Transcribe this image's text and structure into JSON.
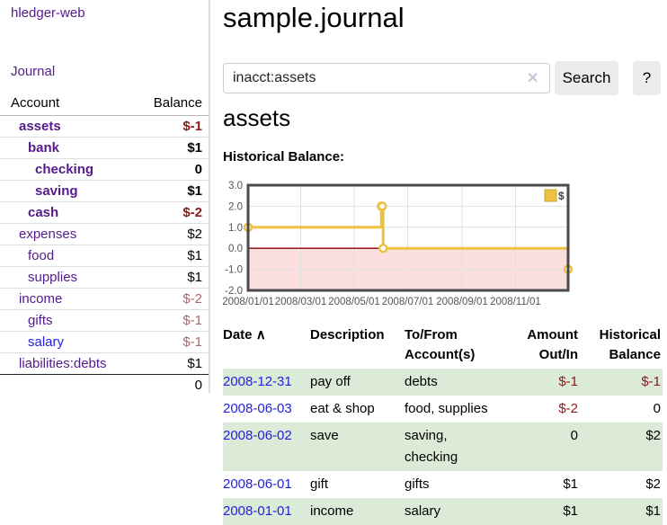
{
  "app": {
    "title": "hledger-web",
    "nav_journal": "Journal"
  },
  "sidebar": {
    "header": {
      "account": "Account",
      "balance": "Balance"
    },
    "rows": [
      {
        "name": "assets",
        "balance": "$-1"
      },
      {
        "name": "bank",
        "balance": "$1"
      },
      {
        "name": "checking",
        "balance": "0"
      },
      {
        "name": "saving",
        "balance": "$1"
      },
      {
        "name": "cash",
        "balance": "$-2"
      },
      {
        "name": "expenses",
        "balance": "$2"
      },
      {
        "name": "food",
        "balance": "$1"
      },
      {
        "name": "supplies",
        "balance": "$1"
      },
      {
        "name": "income",
        "balance": "$-2"
      },
      {
        "name": "gifts",
        "balance": "$-1"
      },
      {
        "name": "salary",
        "balance": "$-1"
      },
      {
        "name": "liabilities:debts",
        "balance": "$1"
      }
    ],
    "total": "0"
  },
  "main": {
    "title": "sample.journal",
    "search": {
      "value": "inacct:assets",
      "clear_icon": "✕",
      "button": "Search",
      "help": "?"
    },
    "account_heading": "assets",
    "chart_label": "Historical Balance:"
  },
  "chart_data": {
    "type": "line",
    "step": true,
    "title": "Historical Balance",
    "series": [
      {
        "name": "$",
        "color": "#edc240",
        "points": [
          [
            "2008-01-01",
            1
          ],
          [
            "2008-06-01",
            2
          ],
          [
            "2008-06-02",
            2
          ],
          [
            "2008-06-03",
            0
          ],
          [
            "2008-12-31",
            -1
          ]
        ]
      }
    ],
    "xrange": [
      "2008-01-01",
      "2008-12-31"
    ],
    "ylim": [
      -2,
      3
    ],
    "yticks": [
      {
        "v": 3,
        "label": "3.0"
      },
      {
        "v": 2,
        "label": "2.0"
      },
      {
        "v": 1,
        "label": "1.0"
      },
      {
        "v": 0,
        "label": "0.0"
      },
      {
        "v": -1,
        "label": "-1.0"
      },
      {
        "v": -2,
        "label": "-2.0"
      }
    ],
    "xticks": [
      {
        "date": "2008-01-01",
        "label": "2008/01/01"
      },
      {
        "date": "2008-03-01",
        "label": "2008/03/01"
      },
      {
        "date": "2008-05-01",
        "label": "2008/05/01"
      },
      {
        "date": "2008-07-01",
        "label": "2008/07/01"
      },
      {
        "date": "2008-09-01",
        "label": "2008/09/01"
      },
      {
        "date": "2008-11-01",
        "label": "2008/11/01"
      }
    ],
    "legend_position": "top-right",
    "negative_fill": "#fbdede",
    "zero_line_color": "#8b0000",
    "grid_color": "#e0e0e0",
    "border_color": "#4a4a4a",
    "axis_text_color": "#545454"
  },
  "register": {
    "columns": [
      "Date",
      "Description",
      "To/From Account(s)",
      "Amount Out/In",
      "Historical Balance"
    ],
    "sort_icon": "∧",
    "rows": [
      {
        "date": "2008-12-31",
        "description": "pay off",
        "accounts": "debts",
        "amount": "$-1",
        "balance": "$-1"
      },
      {
        "date": "2008-06-03",
        "description": "eat & shop",
        "accounts": "food, supplies",
        "amount": "$-2",
        "balance": "0"
      },
      {
        "date": "2008-06-02",
        "description": "save",
        "accounts": "saving, checking",
        "amount": "0",
        "balance": "$2"
      },
      {
        "date": "2008-06-01",
        "description": "gift",
        "accounts": "gifts",
        "amount": "$1",
        "balance": "$2"
      },
      {
        "date": "2008-01-01",
        "description": "income",
        "accounts": "salary",
        "amount": "$1",
        "balance": "$1"
      }
    ]
  },
  "colors": {
    "link_purple": "#551a8b",
    "link_blue": "#2222dd",
    "negative_dark": "#8b1a1a",
    "negative_light": "#b06565",
    "row_green": "#dcead8",
    "chart_yellow": "#edc240"
  }
}
